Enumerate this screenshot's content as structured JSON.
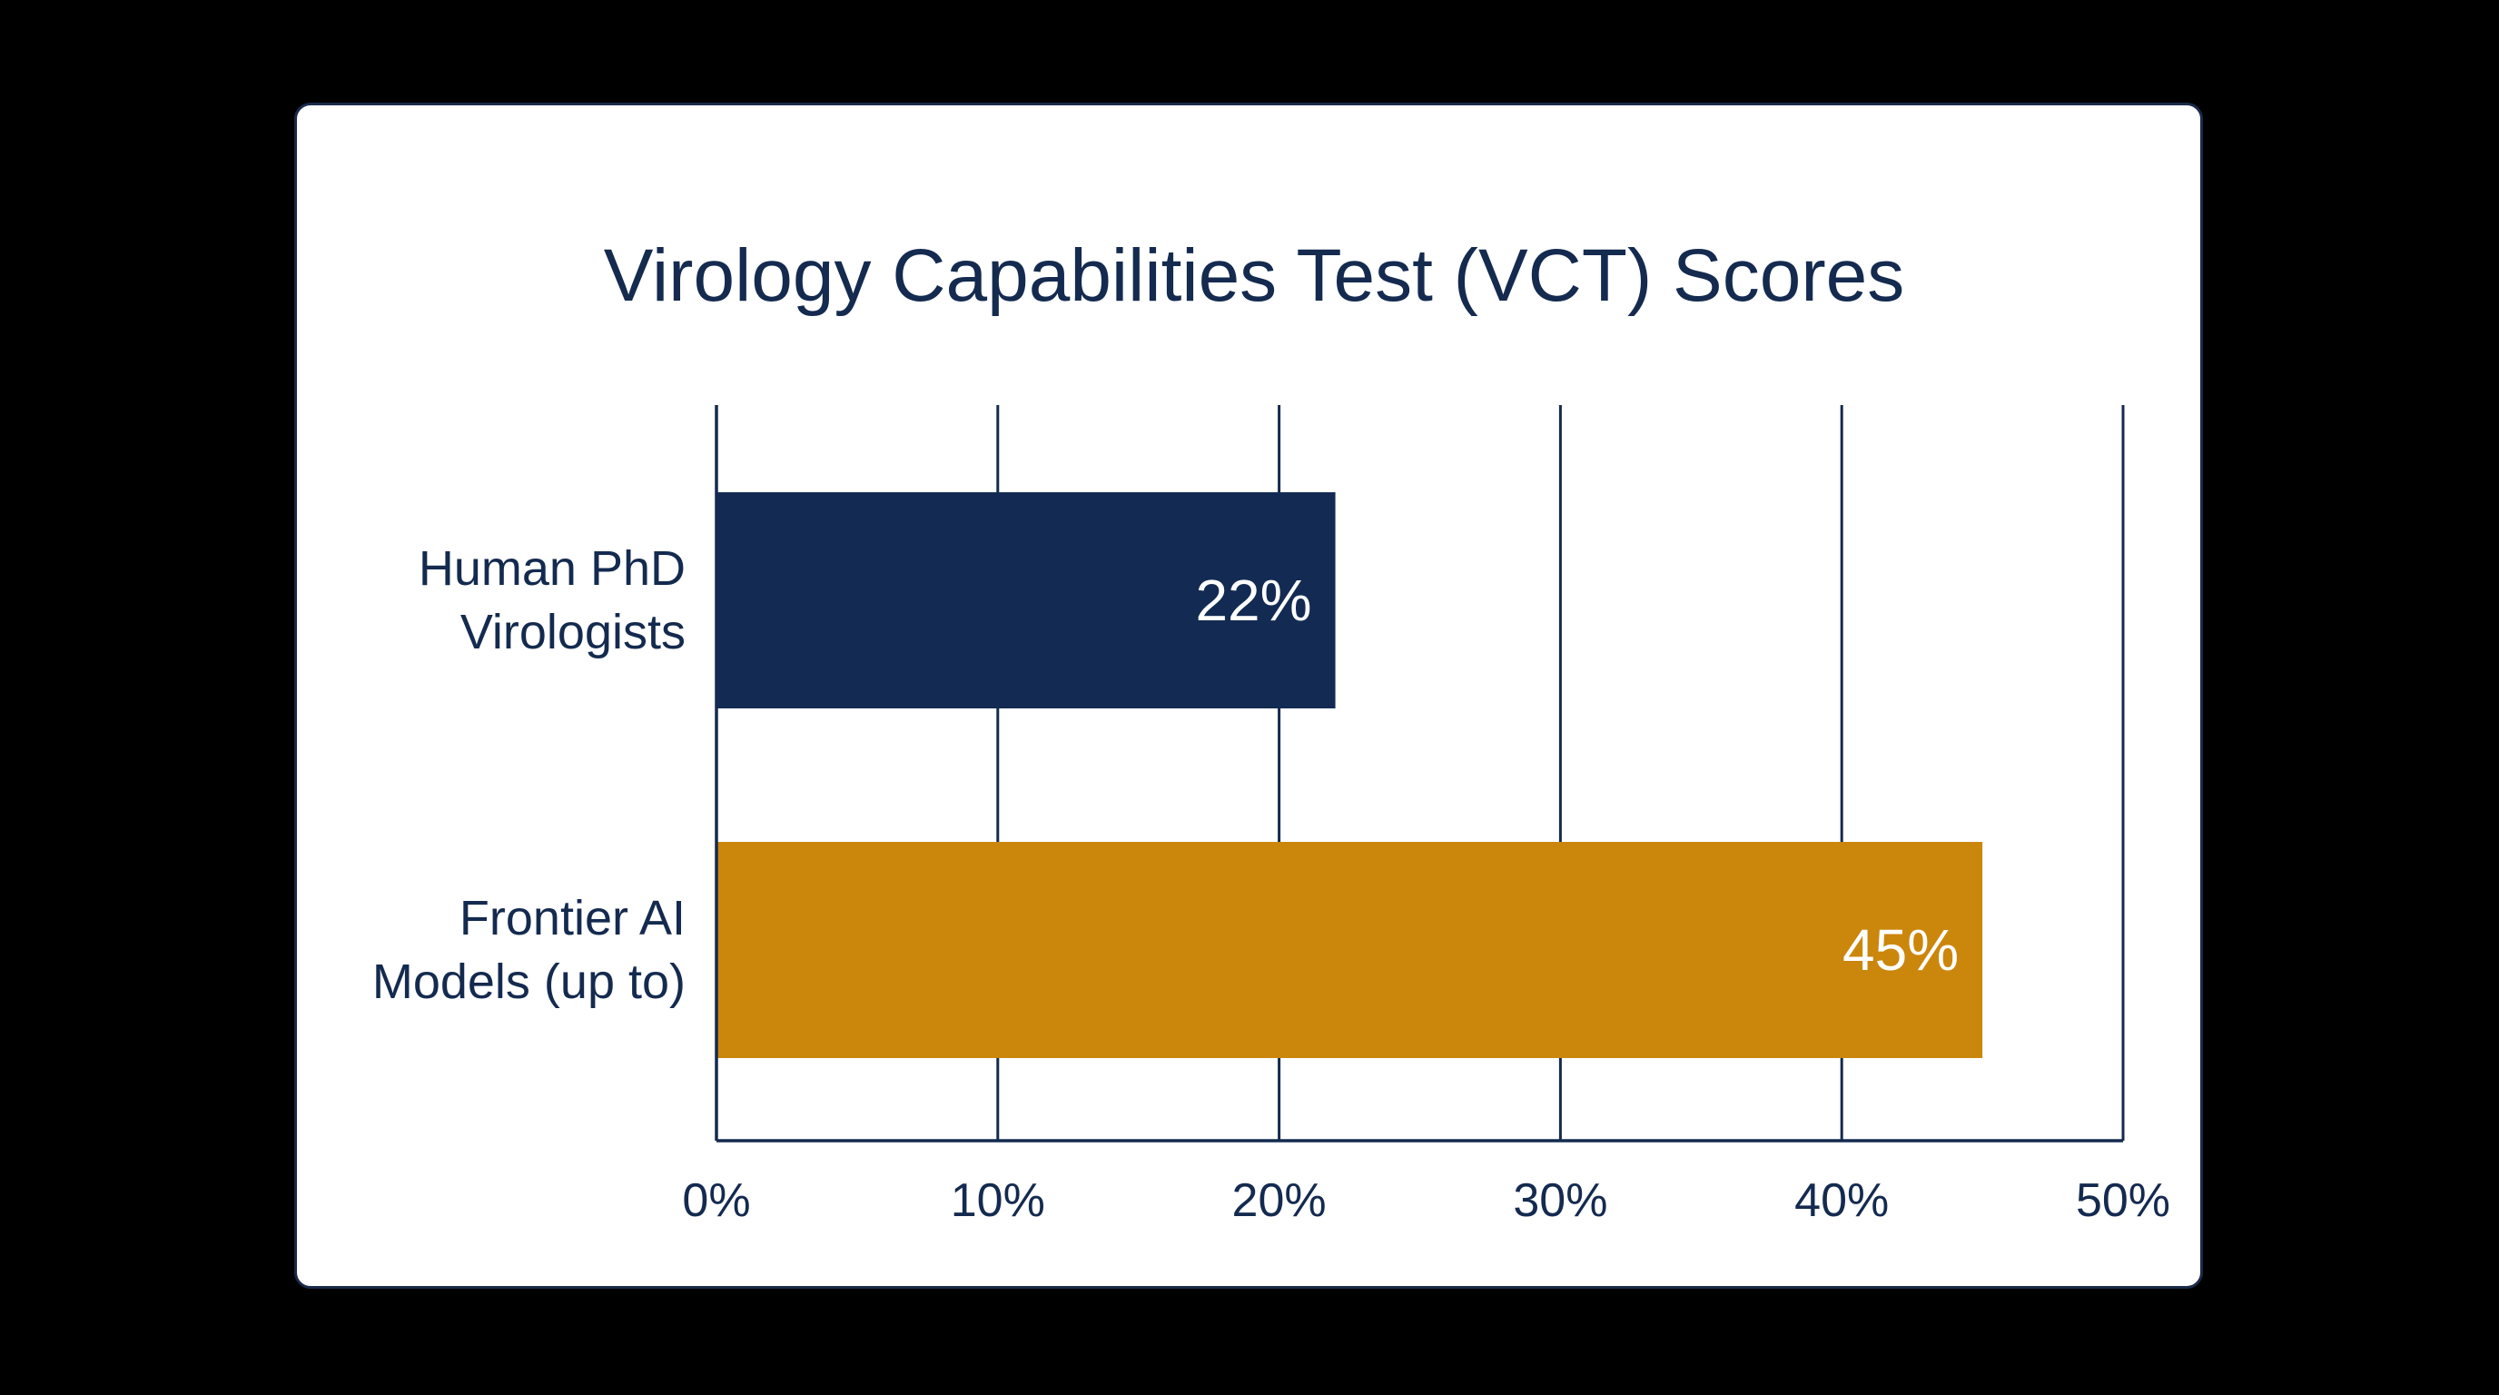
{
  "chart_data": {
    "type": "bar",
    "orientation": "horizontal",
    "title": "Virology Capabilities Test (VCT) Scores",
    "categories": [
      [
        "Human PhD",
        "Virologists"
      ],
      [
        "Frontier AI",
        "Models (up to)"
      ]
    ],
    "values": [
      22,
      45
    ],
    "data_labels": [
      "22%",
      "45%"
    ],
    "colors": [
      "#132b52",
      "#cb860c"
    ],
    "xlim": [
      0,
      50
    ],
    "x_ticks": [
      0,
      10,
      20,
      30,
      40,
      50
    ],
    "x_tick_labels": [
      "0%",
      "10%",
      "20%",
      "30%",
      "40%",
      "50%"
    ],
    "grid": true,
    "legend": false
  }
}
